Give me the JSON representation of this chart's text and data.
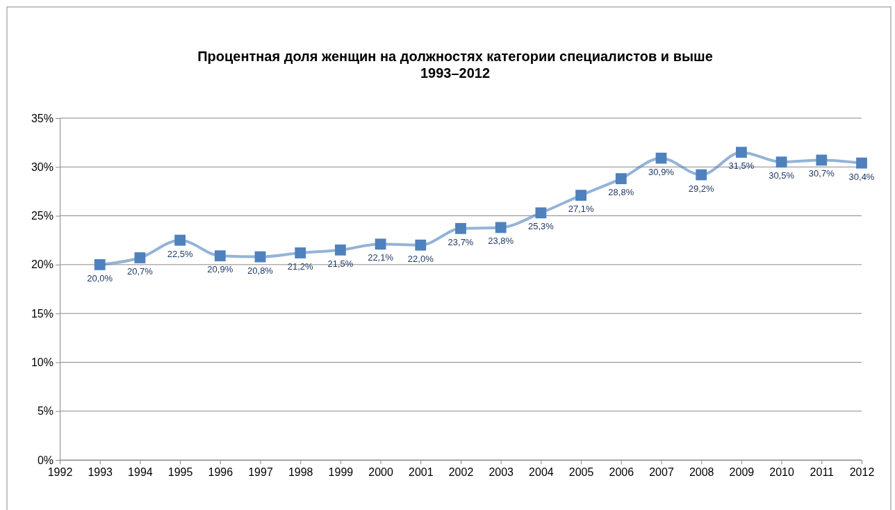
{
  "chart_data": {
    "type": "line",
    "title": "Процентная доля женщин на должностях категории специалистов и выше\n1993–2012",
    "x": [
      1993,
      1994,
      1995,
      1996,
      1997,
      1998,
      1999,
      2000,
      2001,
      2002,
      2003,
      2004,
      2005,
      2006,
      2007,
      2008,
      2009,
      2010,
      2011,
      2012
    ],
    "series": [
      {
        "color": "#4f81bd",
        "values": [
          20.0,
          20.7,
          22.5,
          20.9,
          20.8,
          21.2,
          21.5,
          22.1,
          22.0,
          23.7,
          23.8,
          25.3,
          27.1,
          28.8,
          30.9,
          29.2,
          31.5,
          30.5,
          30.7,
          30.4
        ],
        "value_labels": [
          "20,0%",
          "20,7%",
          "22,5%",
          "20,9%",
          "20,8%",
          "21,2%",
          "21,5%",
          "22,1%",
          "22,0%",
          "23,7%",
          "23,8%",
          "25,3%",
          "27,1%",
          "28,8%",
          "30,9%",
          "29,2%",
          "31,5%",
          "30,5%",
          "30,7%",
          "30,4%"
        ]
      }
    ],
    "xlim": [
      1992,
      2012
    ],
    "xticks": [
      1992,
      1993,
      1994,
      1995,
      1996,
      1997,
      1998,
      1999,
      2000,
      2001,
      2002,
      2003,
      2004,
      2005,
      2006,
      2007,
      2008,
      2009,
      2010,
      2011,
      2012
    ],
    "ylim": [
      0,
      35
    ],
    "yticks": [
      {
        "value": 0,
        "label": "0%"
      },
      {
        "value": 5,
        "label": "5%"
      },
      {
        "value": 10,
        "label": "10%"
      },
      {
        "value": 15,
        "label": "15%"
      },
      {
        "value": 20,
        "label": "20%"
      },
      {
        "value": 25,
        "label": "25%"
      },
      {
        "value": 30,
        "label": "30%"
      },
      {
        "value": 35,
        "label": "35%"
      }
    ],
    "grid": "y",
    "marker": "square",
    "line_style": "solid"
  }
}
